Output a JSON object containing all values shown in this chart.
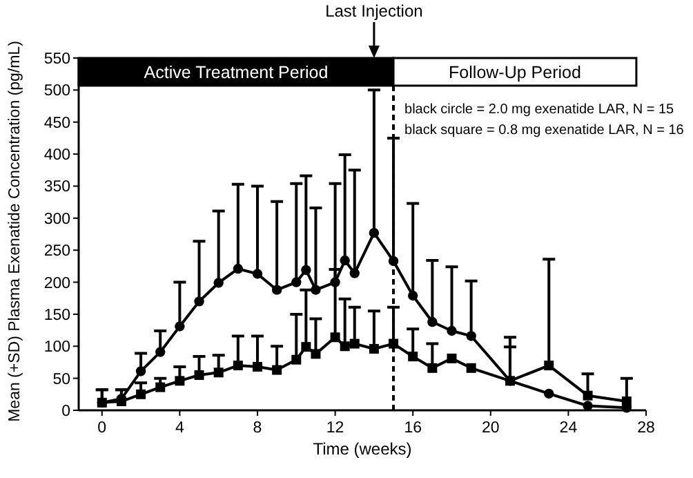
{
  "chart_data": {
    "type": "line",
    "xlabel": "Time (weeks)",
    "ylabel": "Mean (+SD) Plasma Exenatide Concentration  (pg/mL)",
    "xlim": [
      -1.2,
      28
    ],
    "xticks": [
      0,
      4,
      8,
      12,
      16,
      20,
      24,
      28
    ],
    "ylim": [
      0,
      550
    ],
    "yticks": [
      0,
      50,
      100,
      150,
      200,
      250,
      300,
      350,
      400,
      450,
      500,
      550
    ],
    "grid": false,
    "line_style": "solid",
    "series": [
      {
        "color": "#000000",
        "marker": "circle",
        "x": [
          0,
          1,
          2,
          3,
          4,
          5,
          6,
          7,
          8,
          9,
          10,
          10.5,
          11,
          12,
          12.5,
          13,
          14,
          15,
          16,
          17,
          18,
          19,
          21,
          23,
          25,
          27
        ],
        "values": [
          12,
          18,
          61,
          91,
          131,
          170,
          199,
          221,
          213,
          188,
          200,
          219,
          188,
          200,
          234,
          214,
          277,
          233,
          179,
          138,
          124,
          116,
          46,
          26,
          7,
          4
        ],
        "errors": [
          [
            12,
            32
          ],
          [
            18,
            32
          ],
          [
            61,
            89
          ],
          [
            91,
            124
          ],
          [
            131,
            200
          ],
          [
            170,
            264
          ],
          [
            199,
            311
          ],
          [
            221,
            353
          ],
          [
            213,
            350
          ],
          [
            188,
            326
          ],
          [
            200,
            354
          ],
          [
            219,
            366
          ],
          [
            188,
            316
          ],
          [
            200,
            354
          ],
          [
            234,
            399
          ],
          [
            214,
            375
          ],
          [
            277,
            500
          ],
          [
            233,
            425
          ],
          [
            179,
            323
          ],
          [
            138,
            234
          ],
          [
            124,
            224
          ],
          [
            116,
            202
          ],
          [
            46,
            114
          ],
          null,
          null,
          null
        ]
      },
      {
        "color": "#000000",
        "marker": "square",
        "x": [
          0,
          1,
          2,
          3,
          4,
          5,
          6,
          7,
          8,
          9,
          10,
          10.5,
          11,
          12,
          12.5,
          13,
          14,
          15,
          16,
          17,
          18,
          19,
          21,
          23,
          25,
          27
        ],
        "values": [
          12,
          14,
          25,
          36,
          46,
          55,
          59,
          70,
          68,
          63,
          79,
          99,
          88,
          114,
          100,
          104,
          96,
          104,
          84,
          66,
          81,
          66,
          46,
          70,
          23,
          14
        ],
        "errors": [
          [
            12,
            32
          ],
          [
            14,
            32
          ],
          [
            25,
            43
          ],
          [
            36,
            50
          ],
          [
            46,
            68
          ],
          [
            55,
            84
          ],
          [
            59,
            86
          ],
          [
            70,
            116
          ],
          [
            68,
            116
          ],
          [
            63,
            100
          ],
          [
            79,
            150
          ],
          [
            99,
            188
          ],
          [
            88,
            143
          ],
          [
            114,
            220
          ],
          [
            100,
            174
          ],
          [
            104,
            161
          ],
          [
            96,
            155
          ],
          [
            104,
            161
          ],
          [
            84,
            127
          ],
          [
            66,
            104
          ],
          null,
          null,
          [
            46,
            99
          ],
          [
            70,
            236
          ],
          [
            23,
            57
          ],
          [
            14,
            50
          ]
        ]
      }
    ],
    "ref_lines": [
      {
        "axis": "x",
        "value": 15,
        "line_style": "dashed",
        "color": "#000000"
      }
    ],
    "bands": [
      {
        "axis": "x",
        "from": -1.2,
        "to": 15,
        "label": "Active Treatment Period",
        "color": "#000000"
      },
      {
        "axis": "x",
        "from": 15,
        "to": 27.5,
        "label": "Follow-Up Period",
        "color": "#ffffff"
      }
    ],
    "annotations": [
      {
        "text": "Last Injection",
        "x": 14,
        "y": 550
      },
      "black circle = 2.0 mg exenatide LAR, N = 15",
      "black square = 0.8 mg exenatide LAR, N = 16"
    ]
  }
}
